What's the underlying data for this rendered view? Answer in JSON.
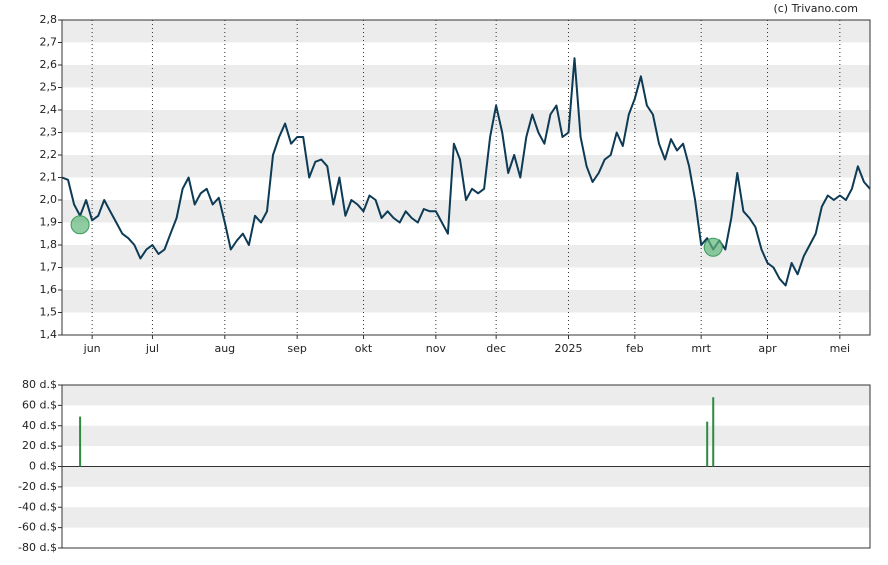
{
  "credit": "(c) Trivano.com",
  "chart_data": [
    {
      "type": "line",
      "categories": [
        null,
        null,
        null,
        null,
        null,
        "jun",
        null,
        null,
        null,
        null,
        null,
        null,
        null,
        null,
        null,
        "jul",
        null,
        null,
        null,
        null,
        null,
        null,
        null,
        null,
        null,
        null,
        null,
        "aug",
        null,
        null,
        null,
        null,
        null,
        null,
        null,
        null,
        null,
        null,
        null,
        "sep",
        null,
        null,
        null,
        null,
        null,
        null,
        null,
        null,
        null,
        null,
        "okt",
        null,
        null,
        null,
        null,
        null,
        null,
        null,
        null,
        null,
        null,
        null,
        "nov",
        null,
        null,
        null,
        null,
        null,
        null,
        null,
        null,
        null,
        "dec",
        null,
        null,
        null,
        null,
        null,
        null,
        null,
        null,
        null,
        null,
        null,
        "2025",
        null,
        null,
        null,
        null,
        null,
        null,
        null,
        null,
        null,
        null,
        "feb",
        null,
        null,
        null,
        null,
        null,
        null,
        null,
        null,
        null,
        null,
        "mrt",
        null,
        null,
        null,
        null,
        null,
        null,
        null,
        null,
        null,
        null,
        "apr",
        null,
        null,
        null,
        null,
        null,
        null,
        null,
        null,
        null,
        null,
        null,
        "mei",
        null,
        null,
        null,
        null,
        null
      ],
      "series": [
        {
          "color": "#0d3a55",
          "values": [
            2.1,
            2.09,
            1.98,
            1.93,
            2.0,
            1.91,
            1.93,
            2.0,
            1.95,
            1.9,
            1.85,
            1.83,
            1.8,
            1.74,
            1.78,
            1.8,
            1.76,
            1.78,
            1.85,
            1.92,
            2.05,
            2.1,
            1.98,
            2.03,
            2.05,
            1.98,
            2.01,
            1.9,
            1.78,
            1.82,
            1.85,
            1.8,
            1.93,
            1.9,
            1.95,
            2.2,
            2.28,
            2.34,
            2.25,
            2.28,
            2.28,
            2.1,
            2.17,
            2.18,
            2.15,
            1.98,
            2.1,
            1.93,
            2.0,
            1.98,
            1.95,
            2.02,
            2.0,
            1.92,
            1.95,
            1.92,
            1.9,
            1.95,
            1.92,
            1.9,
            1.96,
            1.95,
            1.95,
            1.9,
            1.85,
            2.25,
            2.18,
            2.0,
            2.05,
            2.03,
            2.05,
            2.28,
            2.42,
            2.3,
            2.12,
            2.2,
            2.1,
            2.28,
            2.38,
            2.3,
            2.25,
            2.38,
            2.42,
            2.28,
            2.3,
            2.63,
            2.28,
            2.15,
            2.08,
            2.12,
            2.18,
            2.2,
            2.3,
            2.24,
            2.38,
            2.45,
            2.55,
            2.42,
            2.38,
            2.25,
            2.18,
            2.27,
            2.22,
            2.25,
            2.15,
            2.0,
            1.8,
            1.83,
            1.78,
            1.82,
            1.78,
            1.92,
            2.12,
            1.95,
            1.92,
            1.88,
            1.78,
            1.72,
            1.7,
            1.65,
            1.62,
            1.72,
            1.67,
            1.75,
            1.8,
            1.85,
            1.97,
            2.02,
            2.0,
            2.02,
            2.0,
            2.05,
            2.15,
            2.08,
            2.05
          ]
        },
        {
          "color": "#5fb67a",
          "style": "circle",
          "values": [
            null,
            null,
            null,
            1.89,
            null,
            null,
            null,
            null,
            null,
            null,
            null,
            null,
            null,
            null,
            null,
            null,
            null,
            null,
            null,
            null,
            null,
            null,
            null,
            null,
            null,
            null,
            null,
            null,
            null,
            null,
            null,
            null,
            null,
            null,
            null,
            null,
            null,
            null,
            null,
            null,
            null,
            null,
            null,
            null,
            null,
            null,
            null,
            null,
            null,
            null,
            null,
            null,
            null,
            null,
            null,
            null,
            null,
            null,
            null,
            null,
            null,
            null,
            null,
            null,
            null,
            null,
            null,
            null,
            null,
            null,
            null,
            null,
            null,
            null,
            null,
            null,
            null,
            null,
            null,
            null,
            null,
            null,
            null,
            null,
            null,
            null,
            null,
            null,
            null,
            null,
            null,
            null,
            null,
            null,
            null,
            null,
            null,
            null,
            null,
            null,
            null,
            null,
            null,
            null,
            null,
            null,
            null,
            null,
            1.79,
            null,
            null,
            null,
            null,
            null,
            null,
            null,
            null,
            null,
            null,
            null,
            null,
            null,
            null,
            null,
            null,
            null,
            null,
            null,
            null,
            null,
            null,
            null,
            null,
            null,
            null
          ]
        }
      ],
      "ylim": [
        1.4,
        2.8
      ],
      "yticks": [
        {
          "value": 1.4,
          "label": "1,4"
        },
        {
          "value": 1.5,
          "label": "1,5"
        },
        {
          "value": 1.6,
          "label": "1,6"
        },
        {
          "value": 1.7,
          "label": "1,7"
        },
        {
          "value": 1.8,
          "label": "1,8"
        },
        {
          "value": 1.9,
          "label": "1,9"
        },
        {
          "value": 2.0,
          "label": "2,0"
        },
        {
          "value": 2.1,
          "label": "2,1"
        },
        {
          "value": 2.2,
          "label": "2,2"
        },
        {
          "value": 2.3,
          "label": "2,3"
        },
        {
          "value": 2.4,
          "label": "2,4"
        },
        {
          "value": 2.5,
          "label": "2,5"
        },
        {
          "value": 2.6,
          "label": "2,6"
        },
        {
          "value": 2.7,
          "label": "2,7"
        },
        {
          "value": 2.8,
          "label": "2,8"
        }
      ],
      "grid": true
    },
    {
      "type": "bar",
      "color": "#2e8b3e",
      "values": [
        null,
        null,
        null,
        49,
        null,
        null,
        null,
        null,
        null,
        null,
        null,
        null,
        null,
        null,
        null,
        null,
        null,
        null,
        null,
        null,
        null,
        null,
        null,
        null,
        null,
        null,
        null,
        null,
        null,
        null,
        null,
        null,
        null,
        null,
        null,
        null,
        null,
        null,
        null,
        null,
        null,
        null,
        null,
        null,
        null,
        null,
        null,
        null,
        null,
        null,
        null,
        null,
        null,
        null,
        null,
        null,
        null,
        null,
        null,
        null,
        null,
        null,
        null,
        null,
        null,
        null,
        null,
        null,
        null,
        null,
        null,
        null,
        null,
        null,
        null,
        null,
        null,
        null,
        null,
        null,
        null,
        null,
        null,
        null,
        null,
        null,
        null,
        null,
        null,
        null,
        null,
        null,
        null,
        null,
        null,
        null,
        null,
        null,
        null,
        null,
        null,
        null,
        null,
        null,
        null,
        null,
        null,
        44,
        68,
        null,
        null,
        null,
        null,
        null,
        null,
        null,
        null,
        null,
        null,
        null,
        null,
        null,
        null,
        null,
        null,
        null,
        null,
        null,
        null,
        null,
        null,
        null,
        null,
        null,
        null
      ],
      "ylim": [
        -80,
        80
      ],
      "yticks": [
        {
          "value": -80,
          "label": "-80 d.$"
        },
        {
          "value": -60,
          "label": "-60 d.$"
        },
        {
          "value": -40,
          "label": "-40 d.$"
        },
        {
          "value": -20,
          "label": "-20 d.$"
        },
        {
          "value": 0,
          "label": "0 d.$"
        },
        {
          "value": 20,
          "label": "20 d.$"
        },
        {
          "value": 40,
          "label": "40 d.$"
        },
        {
          "value": 60,
          "label": "60 d.$"
        },
        {
          "value": 80,
          "label": "80 d.$"
        }
      ],
      "grid": true
    }
  ]
}
